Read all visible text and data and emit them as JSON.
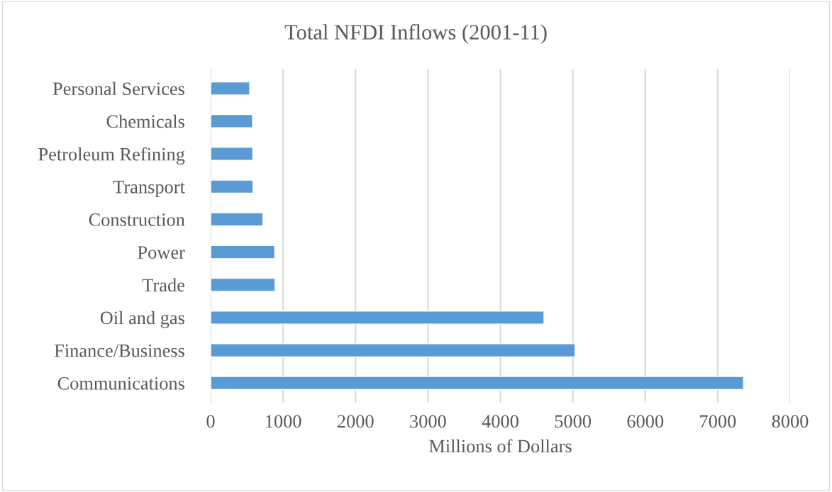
{
  "chart_data": {
    "type": "bar",
    "orientation": "horizontal",
    "title": "Total NFDI Inflows (2001-11)",
    "xlabel": "Millions of Dollars",
    "categories": [
      "Personal Services",
      "Chemicals",
      "Petroleum Refining",
      "Transport",
      "Construction",
      "Power",
      "Trade",
      "Oil and gas",
      "Finance/Business",
      "Communications"
    ],
    "values": [
      539,
      578,
      582,
      585,
      722,
      885,
      889,
      4602,
      5030,
      7357
    ],
    "color": "#5b9bd5",
    "xlim": [
      0,
      8000
    ],
    "xticks": [
      0,
      1000,
      2000,
      3000,
      4000,
      5000,
      6000,
      7000,
      8000
    ],
    "grid": "x"
  }
}
